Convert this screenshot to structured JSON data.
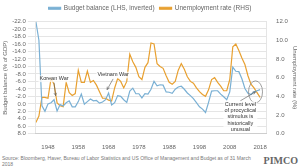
{
  "chart_data": {
    "type": "line",
    "x": [
      1944,
      1945,
      1946,
      1947,
      1948,
      1949,
      1950,
      1951,
      1952,
      1953,
      1954,
      1955,
      1956,
      1957,
      1958,
      1959,
      1960,
      1961,
      1962,
      1963,
      1964,
      1965,
      1966,
      1967,
      1968,
      1969,
      1970,
      1971,
      1972,
      1973,
      1974,
      1975,
      1976,
      1977,
      1978,
      1979,
      1980,
      1981,
      1982,
      1983,
      1984,
      1985,
      1986,
      1987,
      1988,
      1989,
      1990,
      1991,
      1992,
      1993,
      1994,
      1995,
      1996,
      1997,
      1998,
      1999,
      2000,
      2001,
      2002,
      2003,
      2004,
      2005,
      2006,
      2007,
      2008,
      2009,
      2010,
      2011,
      2012,
      2013,
      2014,
      2015,
      2016,
      2017,
      2018
    ],
    "series": [
      {
        "name": "Budget balance (LHS, inverted)",
        "color": "#7ab0d4",
        "axis": "y",
        "values": [
          -22.0,
          -17.0,
          0.5,
          2.0,
          0.0,
          -0.3,
          -1.1,
          1.9,
          0.2,
          0.6,
          -0.3,
          -0.8,
          0.8,
          0.8,
          -0.6,
          -2.6,
          0.1,
          -0.6,
          -1.3,
          -0.8,
          -0.9,
          -0.2,
          -0.5,
          -1.1,
          -2.9,
          0.3,
          -0.3,
          -2.2,
          -2.0,
          -1.1,
          -0.4,
          -3.4,
          -4.2,
          -2.7,
          -2.7,
          -1.6,
          -2.7,
          -2.6,
          -3.9,
          -6.0,
          -4.8,
          -5.1,
          -5.0,
          -3.2,
          -3.1,
          -2.8,
          -3.9,
          -4.5,
          -4.7,
          -3.9,
          -2.9,
          -2.2,
          -1.4,
          -0.3,
          0.8,
          1.4,
          2.3,
          -0.4,
          -3.4,
          -3.5,
          -3.5,
          -2.6,
          -1.9,
          -1.1,
          -3.2,
          -9.8,
          -8.7,
          -8.6,
          -6.7,
          -4.1,
          -2.8,
          -2.5,
          -3.2,
          -3.5,
          -3.8
        ]
      },
      {
        "name": "Unemployment rate (RHS)",
        "color": "#e8a030",
        "axis": "y2",
        "values": [
          1.2,
          1.9,
          3.9,
          3.9,
          3.8,
          5.9,
          5.3,
          3.3,
          3.0,
          2.9,
          5.5,
          4.4,
          4.1,
          4.3,
          6.8,
          5.5,
          5.5,
          6.7,
          5.5,
          5.7,
          5.2,
          4.5,
          3.8,
          3.8,
          3.6,
          3.5,
          4.9,
          5.9,
          5.6,
          4.9,
          5.6,
          8.5,
          7.7,
          7.1,
          6.1,
          5.8,
          7.1,
          7.6,
          9.7,
          9.6,
          7.5,
          7.2,
          7.0,
          6.2,
          5.5,
          5.3,
          5.6,
          6.8,
          7.5,
          6.9,
          6.1,
          5.6,
          5.4,
          4.9,
          4.5,
          4.2,
          4.0,
          4.7,
          5.8,
          6.0,
          5.5,
          5.1,
          4.6,
          4.6,
          5.8,
          9.3,
          9.6,
          8.9,
          8.1,
          7.4,
          6.2,
          5.3,
          4.9,
          4.4,
          3.9
        ]
      }
    ],
    "xlim": [
      1944,
      2020
    ],
    "xticks": [
      1948,
      1958,
      1968,
      1978,
      1988,
      1998,
      2008,
      2018
    ],
    "ylim": [
      8,
      -22
    ],
    "yticks": [
      {
        "value": 8,
        "label": "8.0"
      },
      {
        "value": 6,
        "label": "6.0"
      },
      {
        "value": 4,
        "label": "4.0"
      },
      {
        "value": 2,
        "label": "2.0"
      },
      {
        "value": 0,
        "label": "0.0"
      },
      {
        "value": -2,
        "label": "-2.0"
      },
      {
        "value": -4,
        "label": "-4.0"
      },
      {
        "value": -6,
        "label": "-6.0"
      },
      {
        "value": -8,
        "label": "-8.0"
      },
      {
        "value": -10,
        "label": "-10.0"
      },
      {
        "value": -12,
        "label": "-12.0"
      },
      {
        "value": -14,
        "label": "-14.0"
      },
      {
        "value": -16,
        "label": "-16.0"
      },
      {
        "value": -18,
        "label": "-18.0"
      },
      {
        "value": -20,
        "label": "-20.0"
      },
      {
        "value": -22,
        "label": "-22.0"
      }
    ],
    "y2lim": [
      0,
      12
    ],
    "y2ticks": [
      {
        "value": 0,
        "label": "0.0"
      },
      {
        "value": 2,
        "label": "2.0"
      },
      {
        "value": 4,
        "label": "4.0"
      },
      {
        "value": 6,
        "label": "6.0"
      },
      {
        "value": 8,
        "label": "8.0"
      },
      {
        "value": 10,
        "label": "10.0"
      },
      {
        "value": 12,
        "label": "12.0"
      }
    ],
    "ylabel": "Budget balance (% of GDP)",
    "y2label": "Unemployment rate (%)",
    "grid": true,
    "legend": "top",
    "annotations": [
      {
        "text": "Korean War",
        "x": 1950.5,
        "y": -2.2,
        "text_x": 1950.0,
        "text_y": -5.8
      },
      {
        "text": "Vietnam War",
        "x": 1967.5,
        "y": -3.8,
        "text_x": 1969.5,
        "text_y": -6.8
      },
      {
        "text": "Current level\nof procyclical\nstimulus is\nhistorically\nunusual",
        "x": 2016.5,
        "y": -3.2,
        "text_x": 2011.5,
        "text_y": 4.8,
        "marker": "ellipse"
      }
    ],
    "source": "Source: Bloomberg, Haver, Bureau of Labor Statistics and US Office of Management and Budget as of 31 March 2018",
    "logo": "PIMCO"
  }
}
